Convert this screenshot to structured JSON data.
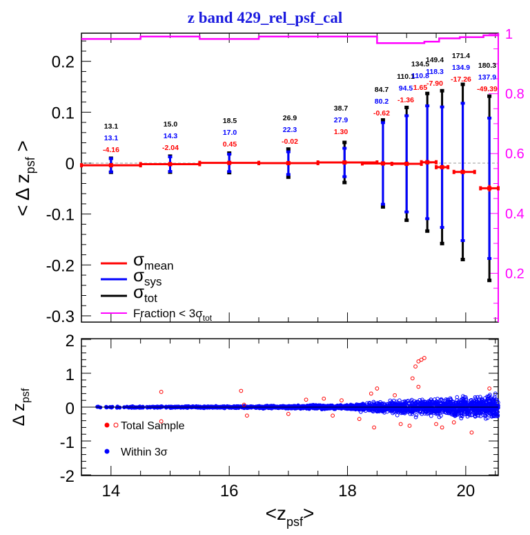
{
  "chart_data": [
    {
      "panel": "top",
      "type": "errorbar",
      "title": "z band 429_rel_psf_cal",
      "xlabel": "<z_psf>",
      "ylabel": "< Δ z_psf >",
      "xlim": [
        13.5,
        20.55
      ],
      "ylim": [
        -0.33,
        0.25
      ],
      "yticks": [
        0.2,
        0.1,
        0,
        -0.1,
        -0.2,
        -0.3
      ],
      "ytick_labels": [
        "0.2",
        "0.1",
        "0",
        "-0.1",
        "-0.2",
        "-0.3"
      ],
      "right_axis": {
        "color": "#ff00ff",
        "ylim": [
          0,
          1
        ],
        "ticks": [
          1,
          0.8,
          0.6,
          0.4,
          0.2
        ],
        "tick_labels": [
          "1",
          "0.8",
          "0.6",
          "0.4",
          "0.2"
        ]
      },
      "reference_line": {
        "y": 0,
        "style": "dashed",
        "color": "#999999"
      },
      "bins": [
        {
          "x": 14.0,
          "xlo": 13.5,
          "xhi": 14.5,
          "mean": -0.0042,
          "sigma_mean": 0.0007,
          "sigma_sys": 0.0131,
          "sigma_tot": 0.0131,
          "label_tot": "13.1",
          "label_sys": "13.1",
          "label_mean": "-4.16"
        },
        {
          "x": 15.0,
          "xlo": 14.5,
          "xhi": 15.5,
          "mean": -0.002,
          "sigma_mean": 0.0008,
          "sigma_sys": 0.0143,
          "sigma_tot": 0.015,
          "label_tot": "15.0",
          "label_sys": "14.3",
          "label_mean": "-2.04"
        },
        {
          "x": 16.0,
          "xlo": 15.5,
          "xhi": 16.5,
          "mean": 0.0005,
          "sigma_mean": 0.0008,
          "sigma_sys": 0.017,
          "sigma_tot": 0.0185,
          "label_tot": "18.5",
          "label_sys": "17.0",
          "label_mean": "0.45"
        },
        {
          "x": 17.0,
          "xlo": 16.5,
          "xhi": 17.5,
          "mean": 0.0,
          "sigma_mean": 0.0009,
          "sigma_sys": 0.0223,
          "sigma_tot": 0.0269,
          "label_tot": "26.9",
          "label_sys": "22.3",
          "label_mean": "-0.02"
        },
        {
          "x": 17.95,
          "xlo": 17.5,
          "xhi": 18.5,
          "mean": 0.0013,
          "sigma_mean": 0.001,
          "sigma_sys": 0.0279,
          "sigma_tot": 0.0387,
          "label_tot": "38.7",
          "label_sys": "27.9",
          "label_mean": "1.30"
        },
        {
          "x": 18.6,
          "xlo": 18.25,
          "xhi": 19.0,
          "mean": -0.0006,
          "sigma_mean": 0.0012,
          "sigma_sys": 0.0802,
          "sigma_tot": 0.0847,
          "label_tot": "84.7",
          "label_sys": "80.2",
          "label_mean": "-0.62"
        },
        {
          "x": 19.0,
          "xlo": 18.75,
          "xhi": 19.25,
          "mean": -0.0014,
          "sigma_mean": 0.0015,
          "sigma_sys": 0.0945,
          "sigma_tot": 0.1101,
          "label_tot": "110.1",
          "label_sys": "94.5",
          "label_mean": "-1.36"
        },
        {
          "x": 19.35,
          "xlo": 19.25,
          "xhi": 19.5,
          "mean": 0.0017,
          "sigma_mean": 0.0025,
          "sigma_sys": 0.1108,
          "sigma_tot": 0.1345,
          "label_tot": "134.5",
          "label_sys": "110.8",
          "label_mean": "1.65"
        },
        {
          "x": 19.6,
          "xlo": 19.5,
          "xhi": 19.7,
          "mean": -0.0079,
          "sigma_mean": 0.0025,
          "sigma_sys": 0.1183,
          "sigma_tot": 0.1494,
          "label_tot": "149.4",
          "label_sys": "118.3",
          "label_mean": "-7.90"
        },
        {
          "x": 19.95,
          "xlo": 19.8,
          "xhi": 20.15,
          "mean": -0.0173,
          "sigma_mean": 0.0025,
          "sigma_sys": 0.1349,
          "sigma_tot": 0.1714,
          "label_tot": "171.4",
          "label_sys": "134.9",
          "label_mean": "-17.26"
        },
        {
          "x": 20.4,
          "xlo": 20.25,
          "xhi": 20.55,
          "mean": -0.0494,
          "sigma_mean": 0.0065,
          "sigma_sys": 0.1379,
          "sigma_tot": 0.1803,
          "label_tot": "180.3",
          "label_sys": "137.9",
          "label_mean": "-49.39"
        }
      ],
      "fraction_series": {
        "name": "Fraction < 3σ_tot",
        "color": "#ff00ff",
        "steps": [
          {
            "xlo": 13.5,
            "xhi": 14.5,
            "value": 0.983
          },
          {
            "xlo": 14.5,
            "xhi": 15.5,
            "value": 0.991
          },
          {
            "xlo": 15.5,
            "xhi": 16.5,
            "value": 0.983
          },
          {
            "xlo": 16.5,
            "xhi": 17.5,
            "value": 0.991
          },
          {
            "xlo": 17.5,
            "xhi": 18.5,
            "value": 0.991
          },
          {
            "xlo": 18.5,
            "xhi": 19.3,
            "value": 0.969
          },
          {
            "xlo": 19.3,
            "xhi": 19.55,
            "value": 0.974
          },
          {
            "xlo": 19.55,
            "xhi": 19.9,
            "value": 0.985
          },
          {
            "xlo": 19.9,
            "xhi": 20.3,
            "value": 0.989
          },
          {
            "xlo": 20.3,
            "xhi": 20.55,
            "value": 0.995
          }
        ]
      },
      "legend": {
        "placement": "bottom-left",
        "entries": [
          {
            "label": "σ",
            "sub": "mean",
            "color": "#ff0000"
          },
          {
            "label": "σ",
            "sub": "sys",
            "color": "#0000ff"
          },
          {
            "label": "σ",
            "sub": "tot",
            "color": "#000000"
          },
          {
            "label": "Fraction < 3σ",
            "sub": "tot",
            "color": "#ff00ff"
          }
        ]
      }
    },
    {
      "panel": "bottom",
      "type": "scatter",
      "xlabel": "<z_psf>",
      "ylabel": "Δ z_psf",
      "xlim": [
        13.5,
        20.55
      ],
      "ylim": [
        -2,
        2
      ],
      "xticks": [
        14,
        16,
        18,
        20
      ],
      "xtick_labels": [
        "14",
        "16",
        "18",
        "20"
      ],
      "yticks": [
        2,
        1,
        0,
        -1,
        -2
      ],
      "ytick_labels": [
        "2",
        "1",
        "0",
        "-1",
        "-2"
      ],
      "series": [
        {
          "name": "Total Sample",
          "color": "#ff0000",
          "marker": "open-circle",
          "outliers": [
            [
              14.85,
              0.45
            ],
            [
              14.85,
              -0.42
            ],
            [
              16.2,
              0.48
            ],
            [
              16.25,
              0.07
            ],
            [
              16.3,
              -0.25
            ],
            [
              17.0,
              -0.2
            ],
            [
              17.3,
              0.22
            ],
            [
              17.6,
              0.25
            ],
            [
              17.9,
              0.2
            ],
            [
              18.4,
              0.4
            ],
            [
              18.5,
              0.55
            ],
            [
              18.45,
              -0.6
            ],
            [
              18.8,
              0.35
            ],
            [
              19.2,
              1.35
            ],
            [
              19.25,
              1.4
            ],
            [
              19.3,
              1.45
            ],
            [
              19.15,
              1.2
            ],
            [
              19.1,
              0.85
            ],
            [
              19.2,
              0.6
            ],
            [
              19.05,
              -0.55
            ],
            [
              19.5,
              -0.5
            ],
            [
              19.6,
              -0.6
            ],
            [
              20.1,
              -0.75
            ],
            [
              20.4,
              0.55
            ],
            [
              18.9,
              -0.5
            ],
            [
              19.8,
              -0.45
            ],
            [
              18.2,
              -0.35
            ],
            [
              17.75,
              -0.25
            ]
          ]
        },
        {
          "name": "Within 3σ",
          "color": "#0000ff",
          "marker": "filled-circle",
          "envelope": [
            [
              13.5,
              0.03
            ],
            [
              16.0,
              0.04
            ],
            [
              17.0,
              0.06
            ],
            [
              18.0,
              0.1
            ],
            [
              18.5,
              0.2
            ],
            [
              19.0,
              0.3
            ],
            [
              19.5,
              0.38
            ],
            [
              20.0,
              0.45
            ],
            [
              20.5,
              0.5
            ]
          ]
        }
      ],
      "reference_line": {
        "y": 0,
        "color": "#000000"
      },
      "legend": {
        "placement": "bottom-left",
        "entries": [
          {
            "label": "Total Sample",
            "color": "#ff0000"
          },
          {
            "label": "Within 3σ",
            "color": "#0000ff"
          }
        ]
      }
    }
  ],
  "labels": {
    "title": "z band 429_rel_psf_cal",
    "top_ylabel_main": "< Δ z",
    "top_ylabel_sub": "psf",
    "top_ylabel_end": " >",
    "bottom_ylabel_main": "Δ z",
    "bottom_ylabel_sub": "psf",
    "xlabel_main": "<z",
    "xlabel_sub": "psf",
    "xlabel_end": ">"
  }
}
